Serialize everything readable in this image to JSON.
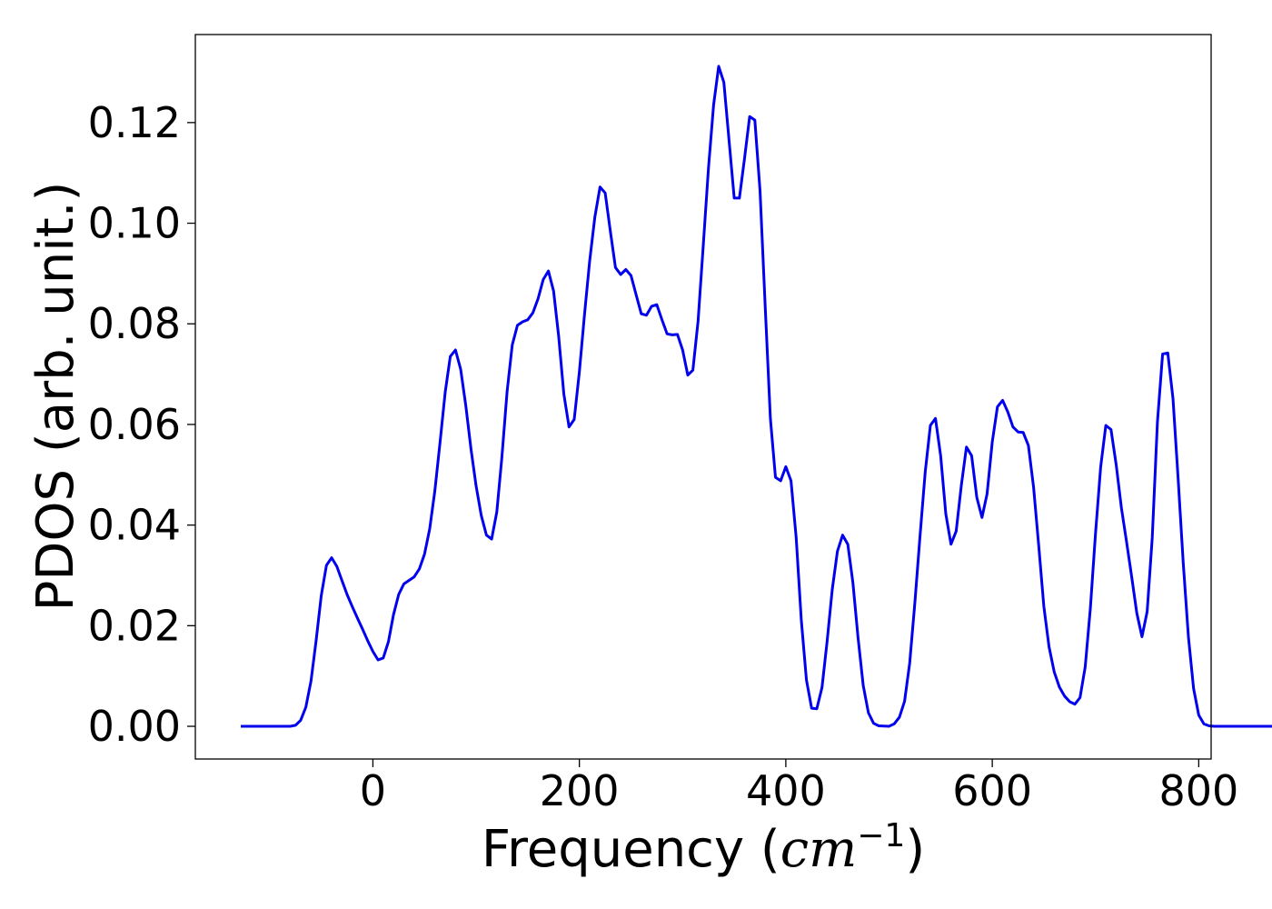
{
  "chart_data": {
    "type": "line",
    "title": "",
    "xlabel": "Frequency (",
    "xlabel_math": "cm",
    "xlabel_sup": "−1",
    "xlabel_close": ")",
    "ylabel": "PDOS (arb. unit.)",
    "xlim": [
      -172,
      812
    ],
    "ylim": [
      -0.0065,
      0.1375
    ],
    "xticks": [
      0,
      200,
      400,
      600,
      800
    ],
    "xtick_labels": [
      "0",
      "200",
      "400",
      "600",
      "800"
    ],
    "yticks": [
      0.0,
      0.02,
      0.04,
      0.06,
      0.08,
      0.1,
      0.12
    ],
    "ytick_labels": [
      "0.00",
      "0.02",
      "0.04",
      "0.06",
      "0.08",
      "0.10",
      "0.12"
    ],
    "grid": false,
    "legend": "none",
    "series": [
      {
        "color": "#0000ee",
        "points": [
          [
            -128,
            0.0
          ],
          [
            -80,
            0.0
          ],
          [
            -75,
            0.0002
          ],
          [
            -70,
            0.0012
          ],
          [
            -65,
            0.0038
          ],
          [
            -60,
            0.009
          ],
          [
            -55,
            0.017
          ],
          [
            -50,
            0.026
          ],
          [
            -45,
            0.032
          ],
          [
            -40,
            0.0335
          ],
          [
            -35,
            0.0318
          ],
          [
            -30,
            0.029
          ],
          [
            -25,
            0.0262
          ],
          [
            -20,
            0.0238
          ],
          [
            -15,
            0.0215
          ],
          [
            -10,
            0.0193
          ],
          [
            -5,
            0.017
          ],
          [
            0,
            0.0149
          ],
          [
            5,
            0.0132
          ],
          [
            10,
            0.0136
          ],
          [
            15,
            0.0168
          ],
          [
            20,
            0.0222
          ],
          [
            25,
            0.0262
          ],
          [
            30,
            0.0283
          ],
          [
            35,
            0.029
          ],
          [
            40,
            0.0297
          ],
          [
            45,
            0.0313
          ],
          [
            50,
            0.0342
          ],
          [
            55,
            0.0392
          ],
          [
            60,
            0.0468
          ],
          [
            65,
            0.0564
          ],
          [
            70,
            0.0664
          ],
          [
            75,
            0.0735
          ],
          [
            80,
            0.0748
          ],
          [
            85,
            0.071
          ],
          [
            90,
            0.0637
          ],
          [
            95,
            0.0551
          ],
          [
            100,
            0.0478
          ],
          [
            105,
            0.0419
          ],
          [
            110,
            0.038
          ],
          [
            115,
            0.0372
          ],
          [
            120,
            0.0426
          ],
          [
            125,
            0.0535
          ],
          [
            130,
            0.0665
          ],
          [
            135,
            0.0758
          ],
          [
            140,
            0.0797
          ],
          [
            145,
            0.0804
          ],
          [
            150,
            0.0808
          ],
          [
            155,
            0.0822
          ],
          [
            160,
            0.085
          ],
          [
            165,
            0.0888
          ],
          [
            170,
            0.0905
          ],
          [
            175,
            0.0865
          ],
          [
            180,
            0.0775
          ],
          [
            185,
            0.066
          ],
          [
            190,
            0.0595
          ],
          [
            195,
            0.061
          ],
          [
            200,
            0.0705
          ],
          [
            205,
            0.0818
          ],
          [
            210,
            0.0925
          ],
          [
            215,
            0.1012
          ],
          [
            220,
            0.1072
          ],
          [
            225,
            0.106
          ],
          [
            230,
            0.0985
          ],
          [
            235,
            0.0912
          ],
          [
            240,
            0.0898
          ],
          [
            245,
            0.0908
          ],
          [
            250,
            0.0896
          ],
          [
            255,
            0.0858
          ],
          [
            260,
            0.082
          ],
          [
            265,
            0.0817
          ],
          [
            270,
            0.0835
          ],
          [
            275,
            0.0838
          ],
          [
            280,
            0.0808
          ],
          [
            285,
            0.078
          ],
          [
            290,
            0.0778
          ],
          [
            295,
            0.0779
          ],
          [
            300,
            0.0748
          ],
          [
            305,
            0.0698
          ],
          [
            310,
            0.0708
          ],
          [
            315,
            0.0805
          ],
          [
            320,
            0.0955
          ],
          [
            325,
            0.1108
          ],
          [
            330,
            0.1235
          ],
          [
            335,
            0.1312
          ],
          [
            340,
            0.128
          ],
          [
            345,
            0.1165
          ],
          [
            350,
            0.105
          ],
          [
            355,
            0.105
          ],
          [
            360,
            0.1128
          ],
          [
            365,
            0.1212
          ],
          [
            370,
            0.1205
          ],
          [
            375,
            0.1065
          ],
          [
            380,
            0.0835
          ],
          [
            385,
            0.0612
          ],
          [
            390,
            0.0495
          ],
          [
            395,
            0.0488
          ],
          [
            400,
            0.0516
          ],
          [
            405,
            0.0488
          ],
          [
            410,
            0.0375
          ],
          [
            415,
            0.0212
          ],
          [
            420,
            0.0092
          ],
          [
            425,
            0.0036
          ],
          [
            430,
            0.0035
          ],
          [
            435,
            0.0077
          ],
          [
            440,
            0.0168
          ],
          [
            445,
            0.0272
          ],
          [
            450,
            0.0348
          ],
          [
            455,
            0.038
          ],
          [
            460,
            0.0362
          ],
          [
            465,
            0.0286
          ],
          [
            470,
            0.0176
          ],
          [
            475,
            0.0081
          ],
          [
            480,
            0.0027
          ],
          [
            485,
            0.0006
          ],
          [
            490,
            0.0001
          ],
          [
            500,
            0.0
          ],
          [
            505,
            0.0005
          ],
          [
            510,
            0.0018
          ],
          [
            515,
            0.005
          ],
          [
            520,
            0.0125
          ],
          [
            525,
            0.0245
          ],
          [
            530,
            0.0378
          ],
          [
            535,
            0.0505
          ],
          [
            540,
            0.0598
          ],
          [
            545,
            0.0612
          ],
          [
            550,
            0.0538
          ],
          [
            555,
            0.0422
          ],
          [
            560,
            0.0362
          ],
          [
            565,
            0.0388
          ],
          [
            570,
            0.0478
          ],
          [
            575,
            0.0555
          ],
          [
            580,
            0.0538
          ],
          [
            585,
            0.0455
          ],
          [
            590,
            0.0415
          ],
          [
            595,
            0.0462
          ],
          [
            600,
            0.0565
          ],
          [
            605,
            0.0635
          ],
          [
            610,
            0.0648
          ],
          [
            615,
            0.0625
          ],
          [
            620,
            0.0595
          ],
          [
            625,
            0.0585
          ],
          [
            630,
            0.0584
          ],
          [
            635,
            0.0558
          ],
          [
            640,
            0.0475
          ],
          [
            645,
            0.0358
          ],
          [
            650,
            0.0238
          ],
          [
            655,
            0.0158
          ],
          [
            660,
            0.0108
          ],
          [
            665,
            0.0078
          ],
          [
            670,
            0.006
          ],
          [
            675,
            0.0049
          ],
          [
            680,
            0.0044
          ],
          [
            685,
            0.0057
          ],
          [
            690,
            0.0118
          ],
          [
            695,
            0.0235
          ],
          [
            700,
            0.0382
          ],
          [
            705,
            0.0515
          ],
          [
            710,
            0.0598
          ],
          [
            715,
            0.059
          ],
          [
            720,
            0.052
          ],
          [
            725,
            0.0435
          ],
          [
            730,
            0.0368
          ],
          [
            735,
            0.0298
          ],
          [
            740,
            0.0225
          ],
          [
            745,
            0.0178
          ],
          [
            750,
            0.0228
          ],
          [
            755,
            0.0375
          ],
          [
            760,
            0.0605
          ],
          [
            765,
            0.074
          ],
          [
            770,
            0.0742
          ],
          [
            775,
            0.0652
          ],
          [
            780,
            0.0495
          ],
          [
            785,
            0.0325
          ],
          [
            790,
            0.0178
          ],
          [
            795,
            0.0075
          ],
          [
            800,
            0.0022
          ],
          [
            805,
            0.0005
          ],
          [
            810,
            0.0001
          ],
          [
            815,
            0.0
          ],
          [
            880,
            0.0
          ]
        ]
      }
    ]
  }
}
